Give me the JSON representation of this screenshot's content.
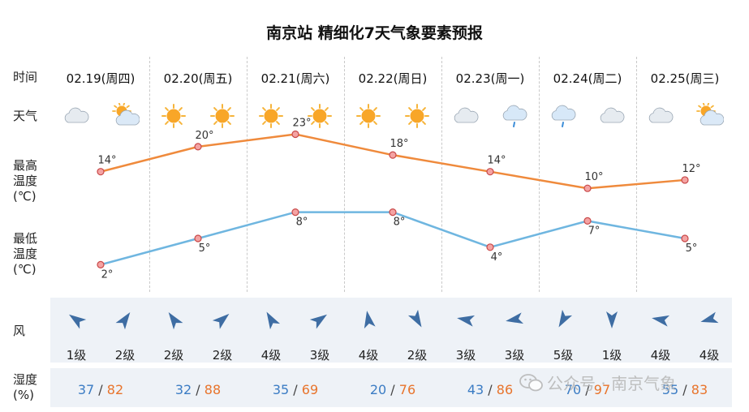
{
  "title": "南京站 精细化7天气象要素预报",
  "row_labels": {
    "time": "时间",
    "weather": "天气",
    "high": "最高\n温度\n(℃)",
    "low": "最低\n温度\n(℃)",
    "wind": "风",
    "humidity": "湿度\n(%)"
  },
  "days": [
    {
      "date": "02.19(周四)",
      "weather": [
        "cloudy-icon",
        "partly-cloudy-icon"
      ],
      "wind_levels": [
        "1级",
        "2级"
      ],
      "hum_low": "37",
      "hum_high": "82",
      "hum_sep": "/"
    },
    {
      "date": "02.20(周五)",
      "weather": [
        "sunny-icon",
        "sunny-icon"
      ],
      "wind_levels": [
        "2级",
        "2级"
      ],
      "hum_low": "32",
      "hum_high": "88",
      "hum_sep": "/"
    },
    {
      "date": "02.21(周六)",
      "weather": [
        "sunny-icon",
        "sunny-icon"
      ],
      "wind_levels": [
        "4级",
        "3级"
      ],
      "hum_low": "35",
      "hum_high": "69",
      "hum_sep": "/"
    },
    {
      "date": "02.22(周日)",
      "weather": [
        "sunny-icon",
        "sunny-icon"
      ],
      "wind_levels": [
        "4级",
        "2级"
      ],
      "hum_low": "20",
      "hum_high": "76",
      "hum_sep": "/"
    },
    {
      "date": "02.23(周一)",
      "weather": [
        "cloudy-icon",
        "light-rain-icon"
      ],
      "wind_levels": [
        "3级",
        "3级"
      ],
      "hum_low": "43",
      "hum_high": "86",
      "hum_sep": "/"
    },
    {
      "date": "02.24(周二)",
      "weather": [
        "light-rain-icon",
        "cloudy-icon"
      ],
      "wind_levels": [
        "5级",
        "1级"
      ],
      "hum_low": "70",
      "hum_high": "97",
      "hum_sep": "/"
    },
    {
      "date": "02.25(周三)",
      "weather": [
        "cloudy-icon",
        "partly-cloudy-icon"
      ],
      "wind_levels": [
        "4级",
        "4级"
      ],
      "hum_low": "55",
      "hum_high": "83",
      "hum_sep": "/"
    }
  ],
  "chart_data": {
    "type": "line",
    "categories": [
      "02.19(周四)",
      "02.20(周五)",
      "02.21(周六)",
      "02.22(周日)",
      "02.23(周一)",
      "02.24(周二)",
      "02.25(周三)"
    ],
    "series": [
      {
        "values": [
          14,
          20,
          23,
          18,
          14,
          10,
          12
        ],
        "labels": [
          "14°",
          "20°",
          "23°",
          "18°",
          "14°",
          "10°",
          "12°"
        ],
        "color": "#ef8a3c"
      },
      {
        "values": [
          2,
          5,
          8,
          8,
          4,
          7,
          5
        ],
        "labels": [
          "2°",
          "5°",
          "8°",
          "8°",
          "4°",
          "7°",
          "5°"
        ],
        "color": "#6fb6e0"
      }
    ]
  },
  "watermark": "公众号 · 南京气象",
  "colors": {
    "high_line": "#ef8a3c",
    "low_line": "#6fb6e0",
    "hum_low": "#3b7cc4",
    "hum_high": "#e8742c",
    "wind_arrow": "#3e6da3",
    "band": "#eef2f7"
  }
}
